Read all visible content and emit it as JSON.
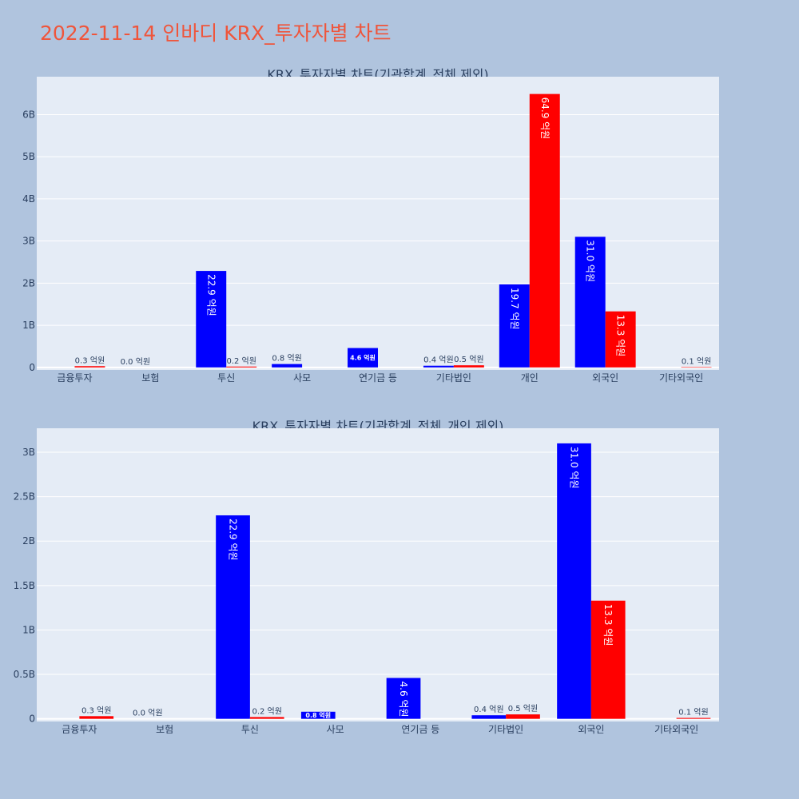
{
  "page_title": "2022-11-14 인바디 KRX_투자자별 차트",
  "colors": {
    "title": "#ef553b",
    "background": "#b0c4de",
    "plot_bg": "#e5ecf6",
    "grid": "#ffffff",
    "text": "#2a3f5f",
    "series_a": "#0000ff",
    "series_b": "#ff0000"
  },
  "chart_data": [
    {
      "type": "bar",
      "title": "KRX_투자자별 차트(기관합계_전체 제외)",
      "categories": [
        "금융투자",
        "보험",
        "투신",
        "사모",
        "연기금 등",
        "기타법인",
        "개인",
        "외국인",
        "기타외국인"
      ],
      "series": [
        {
          "values": [
            0,
            0,
            2290000000,
            80000000,
            460000000,
            40000000,
            1970000000,
            3100000000,
            0
          ],
          "labels": [
            "",
            "0.0 억원",
            "22.9 억원",
            "0.8 억원",
            "4.6 억원",
            "0.4 억원",
            "19.7 억원",
            "31.0 억원",
            ""
          ]
        },
        {
          "values": [
            30000000,
            0,
            20000000,
            0,
            0,
            50000000,
            6490000000,
            1330000000,
            10000000
          ],
          "labels": [
            "0.3 억원",
            "",
            "0.2 억원",
            "",
            "",
            "0.5 억원",
            "64.9 억원",
            "13.3 억원",
            "0.1 억원"
          ]
        }
      ],
      "yticks": [
        "0",
        "1B",
        "2B",
        "3B",
        "4B",
        "5B",
        "6B"
      ],
      "ytick_values": [
        0,
        1000000000,
        2000000000,
        3000000000,
        4000000000,
        5000000000,
        6000000000
      ],
      "ylim": [
        -60000000,
        6900000000
      ],
      "grid": true
    },
    {
      "type": "bar",
      "title": "KRX_투자자별 차트(기관합계_전체_개인 제외)",
      "categories": [
        "금융투자",
        "보험",
        "투신",
        "사모",
        "연기금 등",
        "기타법인",
        "외국인",
        "기타외국인"
      ],
      "series": [
        {
          "values": [
            0,
            0,
            2290000000,
            80000000,
            460000000,
            40000000,
            3100000000,
            0
          ],
          "labels": [
            "",
            "0.0 억원",
            "22.9 억원",
            "0.8 억원",
            "4.6 억원",
            "0.4 억원",
            "31.0 억원",
            ""
          ]
        },
        {
          "values": [
            30000000,
            0,
            20000000,
            0,
            0,
            50000000,
            1330000000,
            10000000
          ],
          "labels": [
            "0.3 억원",
            "",
            "0.2 억원",
            "",
            "",
            "0.5 억원",
            "13.3 억원",
            "0.1 억원"
          ]
        }
      ],
      "yticks": [
        "0",
        "0.5B",
        "1B",
        "1.5B",
        "2B",
        "2.5B",
        "3B"
      ],
      "ytick_values": [
        0,
        500000000,
        1000000000,
        1500000000,
        2000000000,
        2500000000,
        3000000000
      ],
      "ylim": [
        -30000000,
        3270000000
      ],
      "grid": true
    }
  ]
}
